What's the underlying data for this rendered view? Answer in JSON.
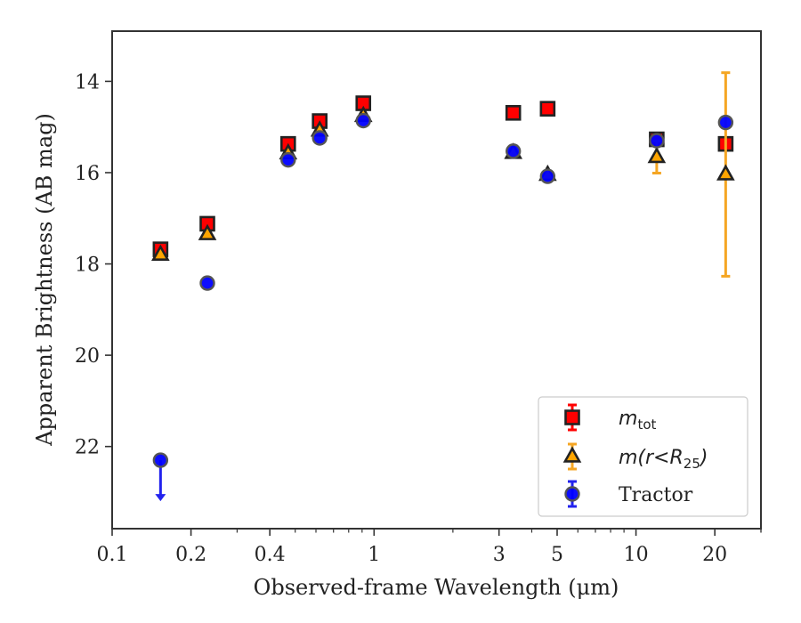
{
  "chart_data": {
    "type": "scatter",
    "xlabel": "Observed-frame Wavelength (μm)",
    "ylabel": "Apparent Brightness (AB mag)",
    "xscale": "log",
    "xlim": [
      0.1,
      30
    ],
    "ylim": [
      23.8,
      12.9
    ],
    "y_inverted": true,
    "xticks": [
      {
        "value": 0.1,
        "label": "0.1"
      },
      {
        "value": 0.2,
        "label": "0.2"
      },
      {
        "value": 0.4,
        "label": "0.4"
      },
      {
        "value": 1,
        "label": "1"
      },
      {
        "value": 3,
        "label": "3"
      },
      {
        "value": 5,
        "label": "5"
      },
      {
        "value": 10,
        "label": "10"
      },
      {
        "value": 20,
        "label": "20"
      }
    ],
    "yticks": [
      {
        "value": 14,
        "label": "14"
      },
      {
        "value": 16,
        "label": "16"
      },
      {
        "value": 18,
        "label": "18"
      },
      {
        "value": 20,
        "label": "20"
      },
      {
        "value": 22,
        "label": "22"
      }
    ],
    "grid": false,
    "legend_position": "lower-right",
    "series": [
      {
        "name": "m_tot",
        "legend_main": "m",
        "legend_sub": "tot",
        "marker": "square",
        "color": "#ff0000",
        "errcolor": "#ff0000",
        "points": [
          {
            "x": 0.153,
            "y": 17.68
          },
          {
            "x": 0.231,
            "y": 17.12
          },
          {
            "x": 0.47,
            "y": 15.37
          },
          {
            "x": 0.62,
            "y": 14.87
          },
          {
            "x": 0.91,
            "y": 14.48
          },
          {
            "x": 3.4,
            "y": 14.69
          },
          {
            "x": 4.6,
            "y": 14.6
          },
          {
            "x": 12.0,
            "y": 15.27
          },
          {
            "x": 22.0,
            "y": 15.37
          }
        ]
      },
      {
        "name": "m(r<R_25)",
        "legend_main": "m(r<R",
        "legend_sub": "25",
        "legend_tail": ")",
        "marker": "triangle",
        "color": "#ffa500",
        "errcolor": "#f5a623",
        "points": [
          {
            "x": 0.153,
            "y": 17.8
          },
          {
            "x": 0.231,
            "y": 17.35
          },
          {
            "x": 0.47,
            "y": 15.58
          },
          {
            "x": 0.62,
            "y": 15.08
          },
          {
            "x": 0.91,
            "y": 14.76
          },
          {
            "x": 3.4,
            "y": 15.57
          },
          {
            "x": 4.6,
            "y": 16.05
          },
          {
            "x": 12.0,
            "y": 15.66,
            "yerr": 0.35
          },
          {
            "x": 22.0,
            "y": 16.04,
            "yerr": 2.23
          }
        ]
      },
      {
        "name": "Tractor",
        "marker": "circle",
        "color": "#0000ff",
        "errcolor": "#2222ee",
        "points": [
          {
            "x": 0.153,
            "y": 22.3,
            "upper_limit": true
          },
          {
            "x": 0.231,
            "y": 18.42
          },
          {
            "x": 0.47,
            "y": 15.72
          },
          {
            "x": 0.62,
            "y": 15.24
          },
          {
            "x": 0.91,
            "y": 14.86
          },
          {
            "x": 3.4,
            "y": 15.53
          },
          {
            "x": 4.6,
            "y": 16.08
          },
          {
            "x": 12.0,
            "y": 15.3
          },
          {
            "x": 22.0,
            "y": 14.9
          }
        ]
      }
    ]
  }
}
